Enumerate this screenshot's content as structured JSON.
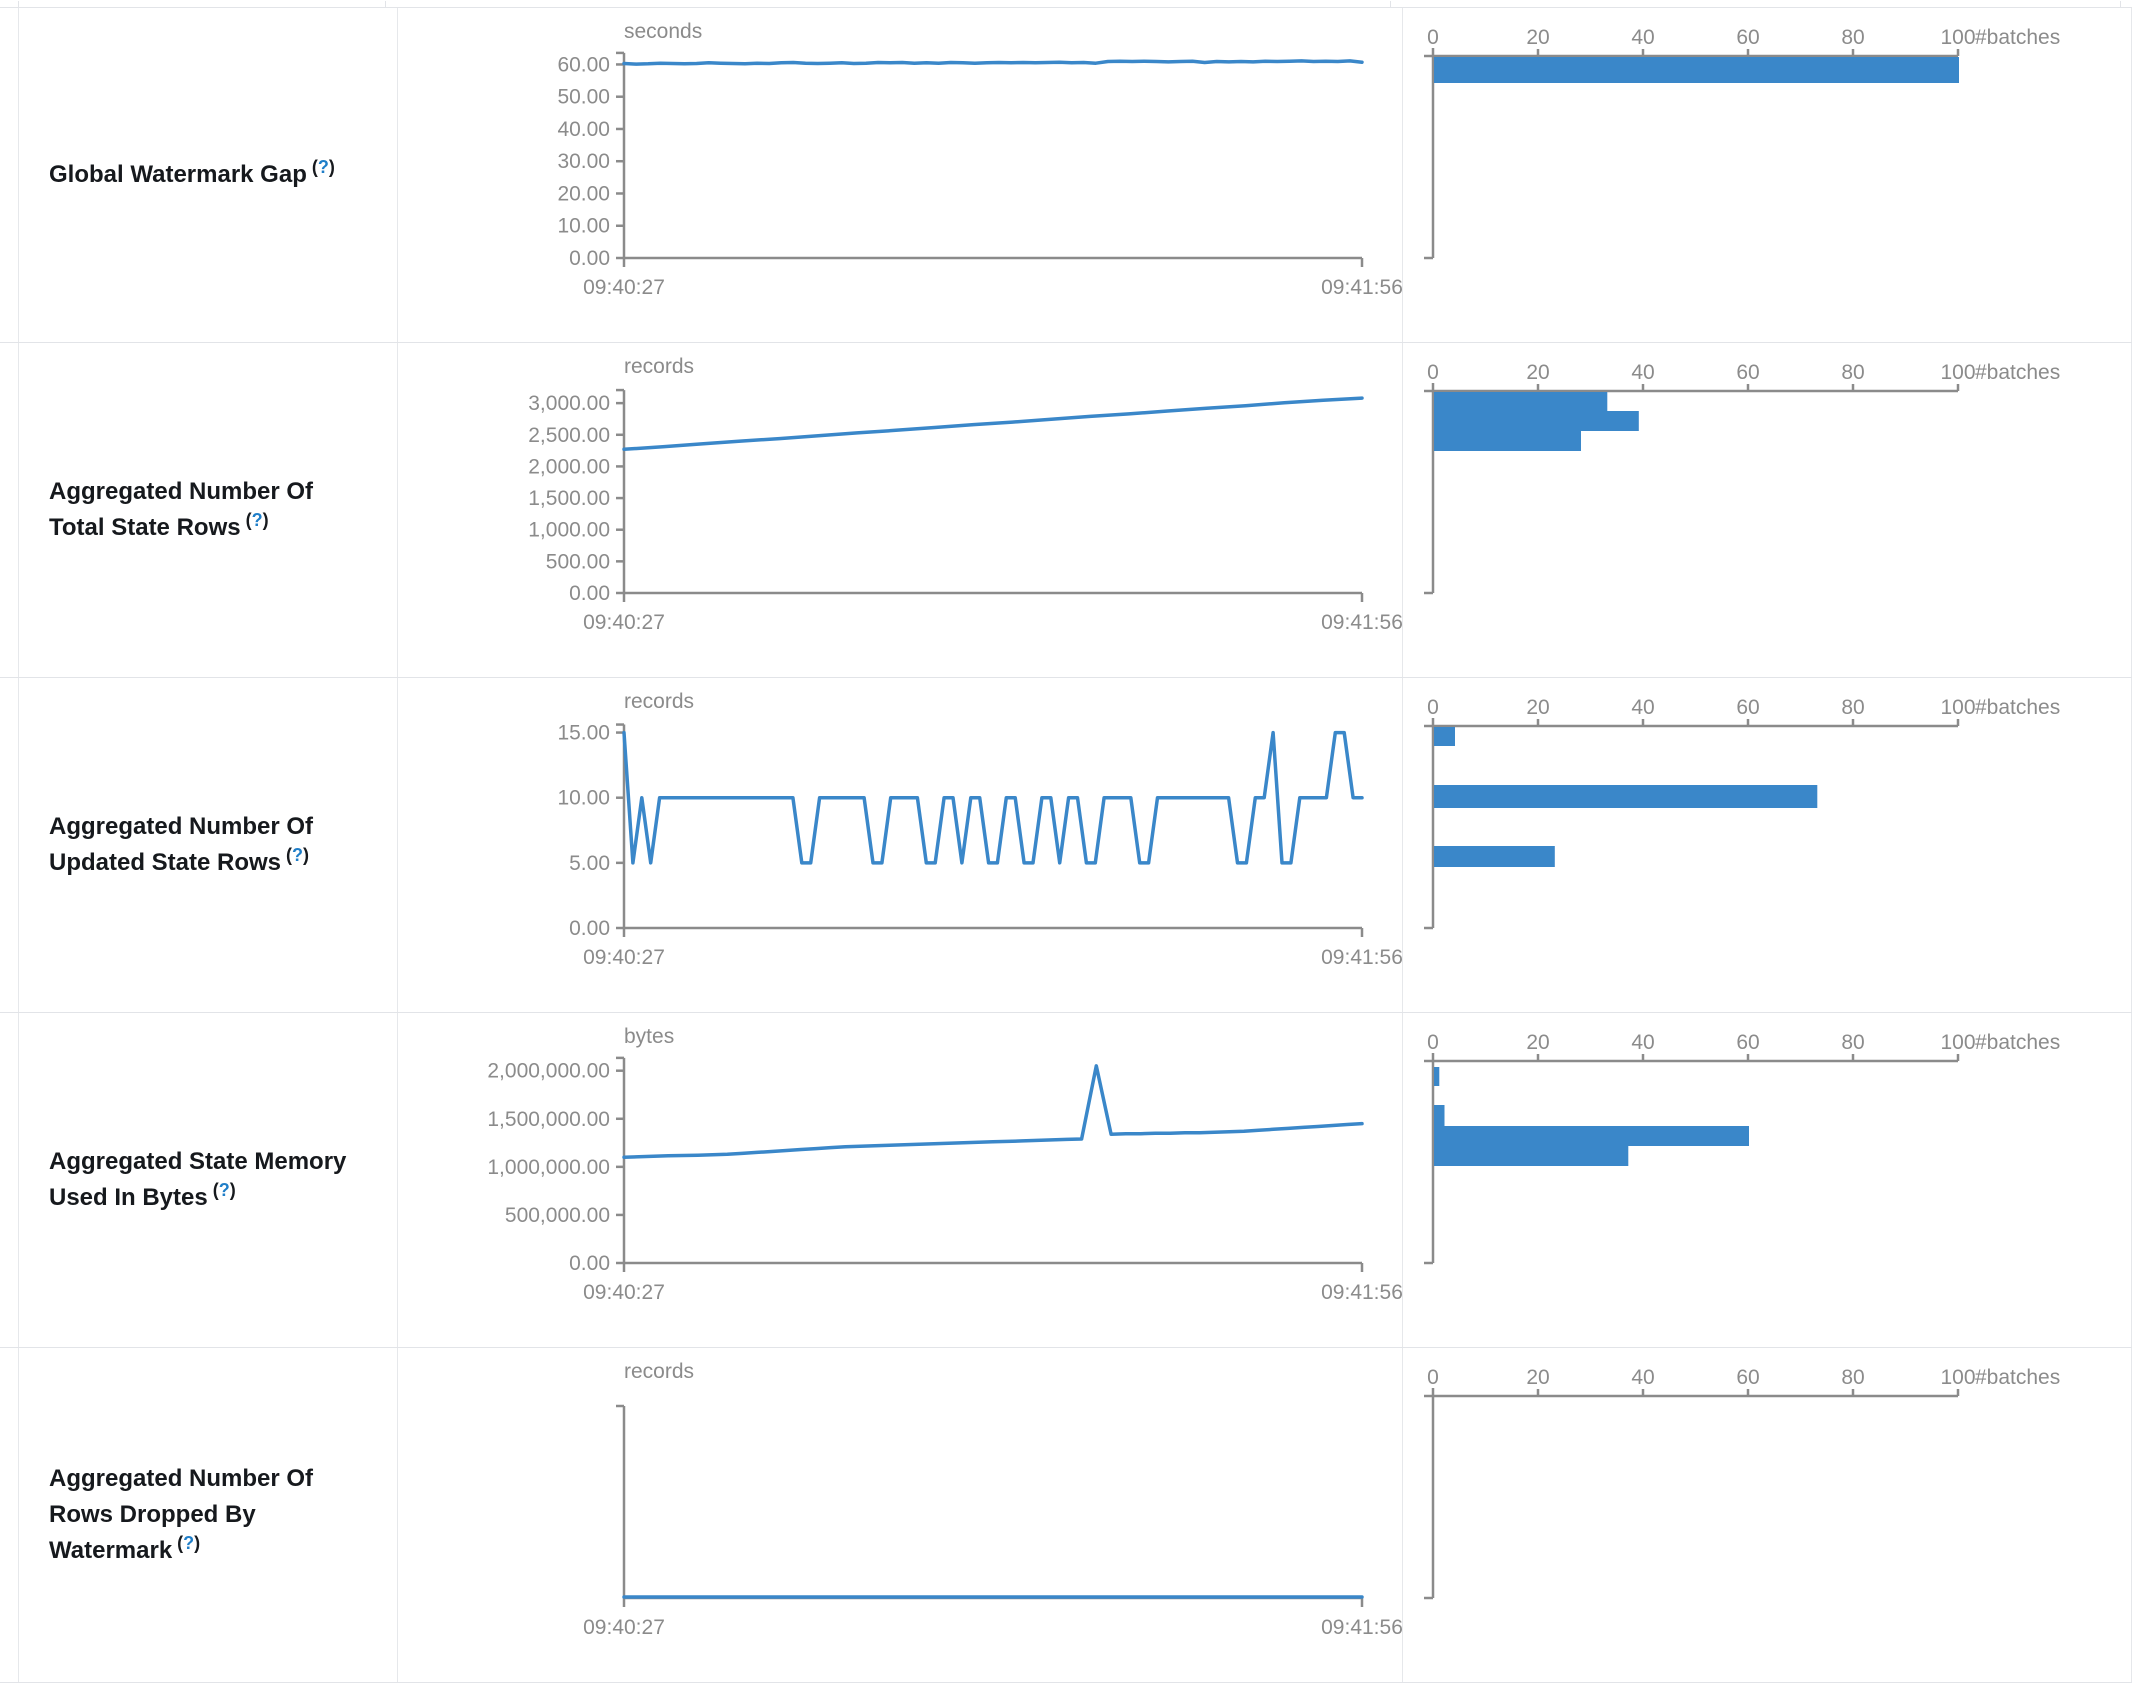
{
  "colors": {
    "series_blue": "#3a87c9",
    "axis_gray": "#8b8b8b",
    "label_dark": "#16191d",
    "help_blue": "#1f7ec8",
    "border_gray": "#e2e4e8"
  },
  "time_axis": {
    "start_label": "09:40:27",
    "end_label": "09:41:56"
  },
  "hist_axis": {
    "tick_values": [
      0,
      20,
      40,
      60,
      80,
      100
    ],
    "unit_label": "#batches"
  },
  "chart_data": [
    {
      "label": "Global Watermark Gap",
      "help": "(?)",
      "line": {
        "type": "line",
        "unit": "seconds",
        "x_start": "09:40:27",
        "x_end": "09:41:56",
        "ytick_labels": [
          "60.00",
          "50.00",
          "40.00",
          "30.00",
          "20.00",
          "10.00",
          "0.00"
        ],
        "ytick_values": [
          60,
          50,
          40,
          30,
          20,
          10,
          0
        ],
        "ylim": [
          0,
          60
        ],
        "y_scale_max": 62,
        "values": [
          60.3,
          60.1,
          60.2,
          60.4,
          60.3,
          60.2,
          60.3,
          60.5,
          60.4,
          60.3,
          60.2,
          60.4,
          60.3,
          60.5,
          60.6,
          60.4,
          60.3,
          60.4,
          60.5,
          60.3,
          60.4,
          60.6,
          60.5,
          60.6,
          60.4,
          60.5,
          60.4,
          60.6,
          60.5,
          60.4,
          60.5,
          60.6,
          60.5,
          60.6,
          60.5,
          60.6,
          60.7,
          60.5,
          60.6,
          60.4,
          60.9,
          61.0,
          60.9,
          61.0,
          60.9,
          60.8,
          60.9,
          61.0,
          60.6,
          60.9,
          60.8,
          60.9,
          60.8,
          61.0,
          60.9,
          61.0,
          61.1,
          60.9,
          61.0,
          60.9,
          61.1,
          60.7
        ]
      },
      "histogram": {
        "type": "bar",
        "xlabel": "#batches",
        "xticks": [
          0,
          20,
          40,
          60,
          80,
          100
        ],
        "bars": [
          {
            "count": 100,
            "y": 49,
            "h": 26
          }
        ]
      }
    },
    {
      "label": "Aggregated Number Of Total State Rows",
      "help": "(?)",
      "line": {
        "type": "line",
        "unit": "records",
        "x_start": "09:40:27",
        "x_end": "09:41:56",
        "ytick_labels": [
          "3,000.00",
          "2,500.00",
          "2,000.00",
          "1,500.00",
          "1,000.00",
          "500.00",
          "0.00"
        ],
        "ytick_values": [
          3000,
          2500,
          2000,
          1500,
          1000,
          500,
          0
        ],
        "ylim": [
          0,
          3000
        ],
        "y_scale_max": 3160,
        "values": [
          2270,
          2310,
          2355,
          2400,
          2440,
          2485,
          2530,
          2570,
          2615,
          2660,
          2700,
          2745,
          2790,
          2830,
          2875,
          2920,
          2960,
          3005,
          3045,
          3080
        ]
      },
      "histogram": {
        "type": "bar",
        "xlabel": "#batches",
        "xticks": [
          0,
          20,
          40,
          60,
          80,
          100
        ],
        "bars": [
          {
            "count": 33,
            "y": 49,
            "h": 19
          },
          {
            "count": 39,
            "y": 68,
            "h": 20
          },
          {
            "count": 28,
            "y": 88,
            "h": 20
          }
        ]
      }
    },
    {
      "label": "Aggregated Number Of Updated State Rows",
      "help": "(?)",
      "line": {
        "type": "line",
        "unit": "records",
        "x_start": "09:40:27",
        "x_end": "09:41:56",
        "ytick_labels": [
          "15.00",
          "10.00",
          "5.00",
          "0.00"
        ],
        "ytick_values": [
          15,
          10,
          5,
          0
        ],
        "ylim": [
          0,
          15
        ],
        "y_scale_max": 15.35,
        "values": [
          15,
          5,
          10,
          5,
          10,
          10,
          10,
          10,
          10,
          10,
          10,
          10,
          10,
          10,
          10,
          10,
          10,
          10,
          10,
          10,
          5,
          5,
          10,
          10,
          10,
          10,
          10,
          10,
          5,
          5,
          10,
          10,
          10,
          10,
          5,
          5,
          10,
          10,
          5,
          10,
          10,
          5,
          5,
          10,
          10,
          5,
          5,
          10,
          10,
          5,
          10,
          10,
          5,
          5,
          10,
          10,
          10,
          10,
          5,
          5,
          10,
          10,
          10,
          10,
          10,
          10,
          10,
          10,
          10,
          5,
          5,
          10,
          10,
          15,
          5,
          5,
          10,
          10,
          10,
          10,
          15,
          15,
          10,
          10
        ]
      },
      "histogram": {
        "type": "bar",
        "xlabel": "#batches",
        "xticks": [
          0,
          20,
          40,
          60,
          80,
          100
        ],
        "bars": [
          {
            "count": 4,
            "y": 49,
            "h": 19
          },
          {
            "count": 73,
            "y": 107,
            "h": 23
          },
          {
            "count": 23,
            "y": 168,
            "h": 21
          }
        ]
      }
    },
    {
      "label": "Aggregated State Memory Used In Bytes",
      "help": "(?)",
      "line": {
        "type": "line",
        "unit": "bytes",
        "x_start": "09:40:27",
        "x_end": "09:41:56",
        "ytick_labels": [
          "2,000,000.00",
          "1,500,000.00",
          "1,000,000.00",
          "500,000.00",
          "0.00"
        ],
        "ytick_values": [
          2000000,
          1500000,
          1000000,
          500000,
          0
        ],
        "ylim": [
          0,
          2000000
        ],
        "y_scale_max": 2080000,
        "values": [
          1100000,
          1105000,
          1110000,
          1115000,
          1118000,
          1120000,
          1125000,
          1130000,
          1140000,
          1150000,
          1160000,
          1170000,
          1180000,
          1190000,
          1200000,
          1210000,
          1215000,
          1220000,
          1225000,
          1230000,
          1235000,
          1240000,
          1245000,
          1250000,
          1255000,
          1260000,
          1265000,
          1270000,
          1275000,
          1280000,
          1285000,
          1290000,
          2050000,
          1340000,
          1345000,
          1345000,
          1350000,
          1350000,
          1355000,
          1355000,
          1360000,
          1365000,
          1370000,
          1380000,
          1390000,
          1400000,
          1410000,
          1420000,
          1430000,
          1440000,
          1450000
        ]
      },
      "histogram": {
        "type": "bar",
        "xlabel": "#batches",
        "xticks": [
          0,
          20,
          40,
          60,
          80,
          100
        ],
        "bars": [
          {
            "count": 1,
            "y": 54,
            "h": 19
          },
          {
            "count": 2,
            "y": 92,
            "h": 21
          },
          {
            "count": 60,
            "y": 113,
            "h": 20
          },
          {
            "count": 37,
            "y": 133,
            "h": 20
          }
        ]
      }
    },
    {
      "label": "Aggregated Number Of Rows Dropped By Watermark",
      "help": "(?)",
      "line": {
        "type": "line",
        "unit": "records",
        "x_start": "09:40:27",
        "x_end": "09:41:56",
        "ytick_labels": [],
        "ytick_values": [],
        "ylim": [
          0,
          0
        ],
        "y_scale_max": 1,
        "values": [
          0,
          0,
          0,
          0,
          0,
          0,
          0,
          0,
          0,
          0,
          0,
          0,
          0,
          0,
          0,
          0,
          0,
          0,
          0,
          0
        ]
      },
      "histogram": {
        "type": "bar",
        "xlabel": "#batches",
        "xticks": [
          0,
          20,
          40,
          60,
          80,
          100
        ],
        "bars": []
      }
    }
  ]
}
